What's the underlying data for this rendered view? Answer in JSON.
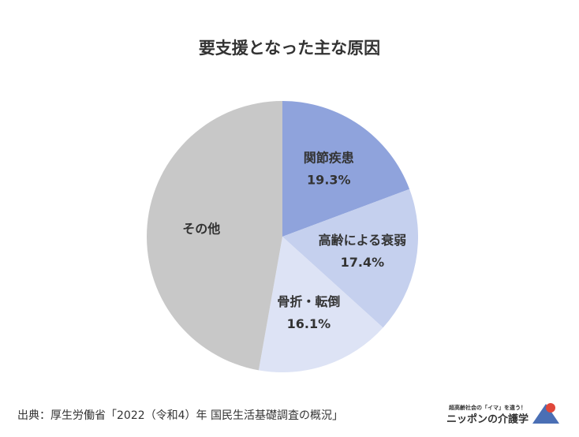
{
  "chart_data": {
    "type": "pie",
    "title": "要支援となった主な原因",
    "categories": [
      "関節疾患",
      "高齢による衰弱",
      "骨折・転倒",
      "その他"
    ],
    "values": [
      19.3,
      17.4,
      16.1,
      47.2
    ],
    "value_labels": [
      "19.3%",
      "17.4%",
      "16.1%",
      null
    ],
    "colors": [
      "#8fa3dc",
      "#c5d0ee",
      "#dde3f5",
      "#c8c8c8"
    ],
    "source": "出典：厚生労働省「2022（令和4）年 国民生活基礎調査の概況」"
  },
  "logo": {
    "tagline": "超高齢社会の「イマ」を違う！",
    "name": "ニッポンの介護学"
  }
}
